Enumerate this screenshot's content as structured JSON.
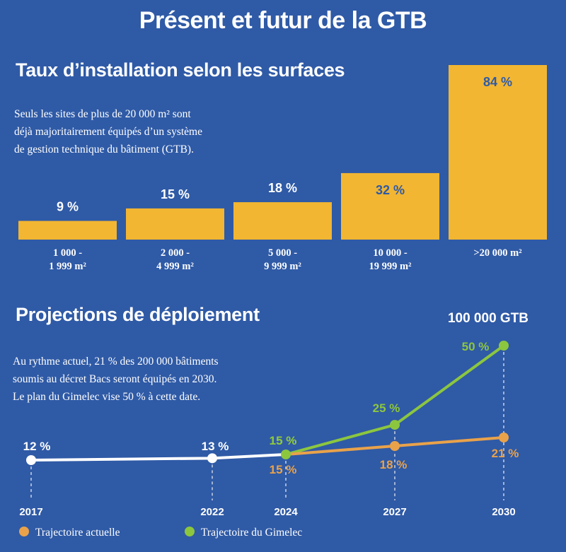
{
  "main_title": "Présent et futur de la GTB",
  "section1": {
    "title": "Taux d’installation selon les surfaces",
    "description_lines": [
      "Seuls les sites de plus de 20 000 m² sont",
      "déjà majoritairement équipés d’un système",
      "de gestion technique du bâtiment (GTB)."
    ]
  },
  "section2": {
    "title": "Projections de déploiement",
    "description_lines": [
      "Au rythme actuel, 21 % des 200 000 bâtiments",
      "soumis au décret Bacs seront équipés en 2030.",
      "Le plan du Gimelec vise 50 % à cette date."
    ],
    "top_annotation": "100 000 GTB"
  },
  "colors": {
    "background": "#2f5aa6",
    "bar": "#f2b632",
    "current": "#e9a24a",
    "gimelec": "#8cc63f",
    "history": "#ffffff",
    "blue_text": "#2f5aa6"
  },
  "chart_data": [
    {
      "type": "bar",
      "title": "Taux d’installation selon les surfaces",
      "categories": [
        [
          "1 000 -",
          "1 999 m²"
        ],
        [
          "2 000 -",
          "4 999 m²"
        ],
        [
          "5 000 -",
          "9 999 m²"
        ],
        [
          "10 000 -",
          "19 999 m²"
        ],
        [
          ">20 000 m²"
        ]
      ],
      "values": [
        9,
        15,
        18,
        32,
        84
      ],
      "value_labels": [
        "9 %",
        "15 %",
        "18 %",
        "32 %",
        "84 %"
      ],
      "ylim": [
        0,
        84
      ]
    },
    {
      "type": "line",
      "title": "Projections de déploiement",
      "x": [
        2017,
        2022,
        2024,
        2027,
        2030
      ],
      "x_labels": [
        "2017",
        "2022",
        "2024",
        "2027",
        "2030"
      ],
      "history": {
        "x": [
          2017,
          2022,
          2024
        ],
        "values": [
          12,
          13,
          15
        ],
        "labels": [
          "12 %",
          "13 %",
          "15 %"
        ]
      },
      "series": [
        {
          "name": "Trajectoire actuelle",
          "x": [
            2024,
            2027,
            2030
          ],
          "values": [
            15,
            18,
            21
          ],
          "labels": [
            "15 %",
            "18 %",
            "21 %"
          ]
        },
        {
          "name": "Trajectoire du Gimelec",
          "x": [
            2024,
            2027,
            2030
          ],
          "values": [
            15,
            25,
            50
          ],
          "labels": [
            "15 %",
            "25 %",
            "50 %"
          ]
        }
      ],
      "legend": "bottom-left",
      "ylim": [
        12,
        50
      ]
    }
  ]
}
